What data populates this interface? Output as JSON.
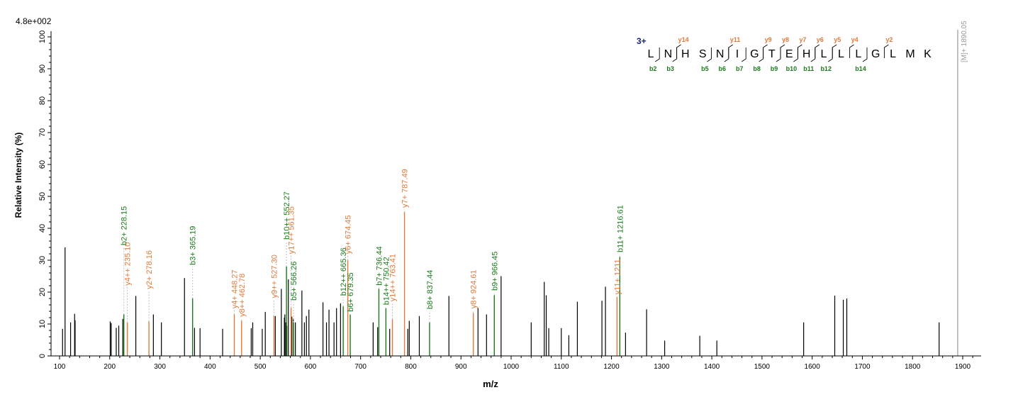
{
  "chart_data": {
    "type": "bar",
    "scale_label": "4.8e+002",
    "xlabel": "m/z",
    "ylabel": "Relative   Intensity (%)",
    "xlim": [
      80,
      1930
    ],
    "ylim": [
      0,
      101
    ],
    "xticks": [
      100,
      200,
      300,
      400,
      500,
      600,
      700,
      800,
      900,
      1000,
      1100,
      1200,
      1300,
      1400,
      1500,
      1600,
      1700,
      1800,
      1900
    ],
    "yticks": [
      0,
      10,
      20,
      30,
      40,
      50,
      60,
      70,
      80,
      90,
      100
    ],
    "colors": {
      "unassigned": "#000000",
      "b_ion": "#1b7a1b",
      "y_ion": "#e07a3a",
      "precursor": "#999999",
      "charge": "#1a237e"
    },
    "precursor": {
      "mz": 1890.05,
      "label": "[M]+ 1890.05"
    },
    "unlabeled_peaks": [
      [
        106,
        8.5
      ],
      [
        111,
        34
      ],
      [
        122,
        10.5
      ],
      [
        130,
        13.2
      ],
      [
        131,
        11.2
      ],
      [
        201,
        10.8
      ],
      [
        203,
        10.3
      ],
      [
        213,
        8.8
      ],
      [
        218,
        9.5
      ],
      [
        226,
        11.6
      ],
      [
        252,
        18.8
      ],
      [
        287,
        13
      ],
      [
        303,
        10.5
      ],
      [
        349,
        24.4
      ],
      [
        369,
        8.8
      ],
      [
        380,
        8.7
      ],
      [
        425,
        8.5
      ],
      [
        482,
        8.7
      ],
      [
        485,
        10.5
      ],
      [
        504,
        8.5
      ],
      [
        510,
        13.8
      ],
      [
        530,
        12.5
      ],
      [
        542,
        21
      ],
      [
        548,
        12
      ],
      [
        549,
        13
      ],
      [
        551,
        10.5
      ],
      [
        553,
        9.5
      ],
      [
        556,
        24
      ],
      [
        563,
        12.3
      ],
      [
        566,
        11.8
      ],
      [
        570,
        10.5
      ],
      [
        583,
        20.5
      ],
      [
        588,
        10.5
      ],
      [
        592,
        12.5
      ],
      [
        597,
        14.5
      ],
      [
        625,
        16.8
      ],
      [
        632,
        10.5
      ],
      [
        637,
        14.5
      ],
      [
        647,
        10.5
      ],
      [
        652,
        15
      ],
      [
        660,
        16.5
      ],
      [
        725,
        10.5
      ],
      [
        734,
        9
      ],
      [
        758,
        8.5
      ],
      [
        794,
        8.5
      ],
      [
        797,
        11
      ],
      [
        817,
        12.5
      ],
      [
        876,
        18.8
      ],
      [
        934,
        15
      ],
      [
        951,
        13
      ],
      [
        980,
        25
      ],
      [
        1040,
        10.5
      ],
      [
        1066,
        23.2
      ],
      [
        1070,
        19
      ],
      [
        1075,
        8.7
      ],
      [
        1100,
        8.7
      ],
      [
        1115,
        6.5
      ],
      [
        1132,
        17
      ],
      [
        1181,
        17.3
      ],
      [
        1188,
        21.7
      ],
      [
        1228,
        7.3
      ],
      [
        1270,
        14.6
      ],
      [
        1306,
        4.8
      ],
      [
        1376,
        6.3
      ],
      [
        1410,
        4.8
      ],
      [
        1583,
        10.5
      ],
      [
        1645,
        18.9
      ],
      [
        1662,
        17.6
      ],
      [
        1669,
        18
      ],
      [
        1853,
        10.5
      ]
    ],
    "labeled_peaks": [
      {
        "mz": 228.15,
        "y": 13,
        "ion": "b",
        "label": "b2+ 228.15",
        "top": 34.2
      },
      {
        "mz": 235.1,
        "y": 10.5,
        "ion": "y",
        "label": "y4++ 235.10",
        "top": 21.6
      },
      {
        "mz": 278.16,
        "y": 10.8,
        "ion": "y",
        "label": "y2+ 278.16",
        "top": 20.5
      },
      {
        "mz": 365.19,
        "y": 18,
        "ion": "b",
        "label": "b3+ 365.19",
        "top": 28
      },
      {
        "mz": 448.27,
        "y": 13,
        "ion": "y",
        "label": "y4+ 448.27",
        "top": 14.4
      },
      {
        "mz": 462.78,
        "y": 11,
        "ion": "y",
        "label": "y8++ 462.78",
        "top": 11.8
      },
      {
        "mz": 527.3,
        "y": 12.5,
        "ion": "y",
        "label": "y9++ 527.30",
        "top": 17.7
      },
      {
        "mz": 552.27,
        "y": 28,
        "ion": "b",
        "label": "b10++ 552.27",
        "top": 36
      },
      {
        "mz": 561.35,
        "y": 15,
        "ion": "y",
        "label": "y17++ 561.35",
        "top": 31.5
      },
      {
        "mz": 566.26,
        "y": 10.5,
        "ion": "b",
        "label": "b5+ 566.26",
        "top": 16.9
      },
      {
        "mz": 665.36,
        "y": 15.5,
        "ion": "b",
        "label": "b12++ 665.36",
        "top": 18.4
      },
      {
        "mz": 674.45,
        "y": 30,
        "ion": "y",
        "label": "y6+ 674.45",
        "top": 31.5
      },
      {
        "mz": 679.35,
        "y": 13,
        "ion": "b",
        "label": "b6+ 679.35",
        "top": 13.4
      },
      {
        "mz": 736.44,
        "y": 21,
        "ion": "b",
        "label": "b7+ 736.44",
        "top": 21.6
      },
      {
        "mz": 750.42,
        "y": 15,
        "ion": "b",
        "label": "b14++ 750.42",
        "top": 15.5
      },
      {
        "mz": 763.41,
        "y": 11.5,
        "ion": "y",
        "label": "y14++ 763.41",
        "top": 16.6
      },
      {
        "mz": 787.49,
        "y": 45,
        "ion": "y",
        "label": "y7+ 787.49",
        "top": 46
      },
      {
        "mz": 837.44,
        "y": 10.5,
        "ion": "b",
        "label": "b8+ 837.44",
        "top": 14.2
      },
      {
        "mz": 924.61,
        "y": 13.5,
        "ion": "y",
        "label": "y8+ 924.61",
        "top": 14.4
      },
      {
        "mz": 966.45,
        "y": 19,
        "ion": "b",
        "label": "b9+ 966.45",
        "top": 20
      },
      {
        "mz": 1211,
        "y": 18.5,
        "ion": "y",
        "label": "y11+ 1211",
        "top": 18.8
      },
      {
        "mz": 1216.61,
        "y": 31,
        "ion": "b",
        "label": "b11+ 1216.61",
        "top": 32
      }
    ],
    "sequence": {
      "charge": "3+",
      "residues": [
        "L",
        "N",
        "H",
        "S",
        "N",
        "I",
        "G",
        "T",
        "E",
        "H",
        "L",
        "L",
        "L",
        "G",
        "L",
        "M",
        "K"
      ],
      "y_ions": [
        {
          "after": 2,
          "label": "y14"
        },
        {
          "after": 5,
          "label": "y11"
        },
        {
          "after": 7,
          "label": "y9"
        },
        {
          "after": 8,
          "label": "y8"
        },
        {
          "after": 9,
          "label": "y7"
        },
        {
          "after": 10,
          "label": "y6"
        },
        {
          "after": 11,
          "label": "y5"
        },
        {
          "after": 12,
          "label": "y4"
        },
        {
          "after": 14,
          "label": "y2"
        }
      ],
      "b_ions": [
        {
          "after": 1,
          "label": "b2"
        },
        {
          "after": 2,
          "label": "b3"
        },
        {
          "after": 4,
          "label": "b5"
        },
        {
          "after": 5,
          "label": "b6"
        },
        {
          "after": 6,
          "label": "b7"
        },
        {
          "after": 7,
          "label": "b8"
        },
        {
          "after": 8,
          "label": "b9"
        },
        {
          "after": 9,
          "label": "b10"
        },
        {
          "after": 10,
          "label": "b11"
        },
        {
          "after": 11,
          "label": "b12"
        },
        {
          "after": 13,
          "label": "b14"
        }
      ]
    }
  }
}
